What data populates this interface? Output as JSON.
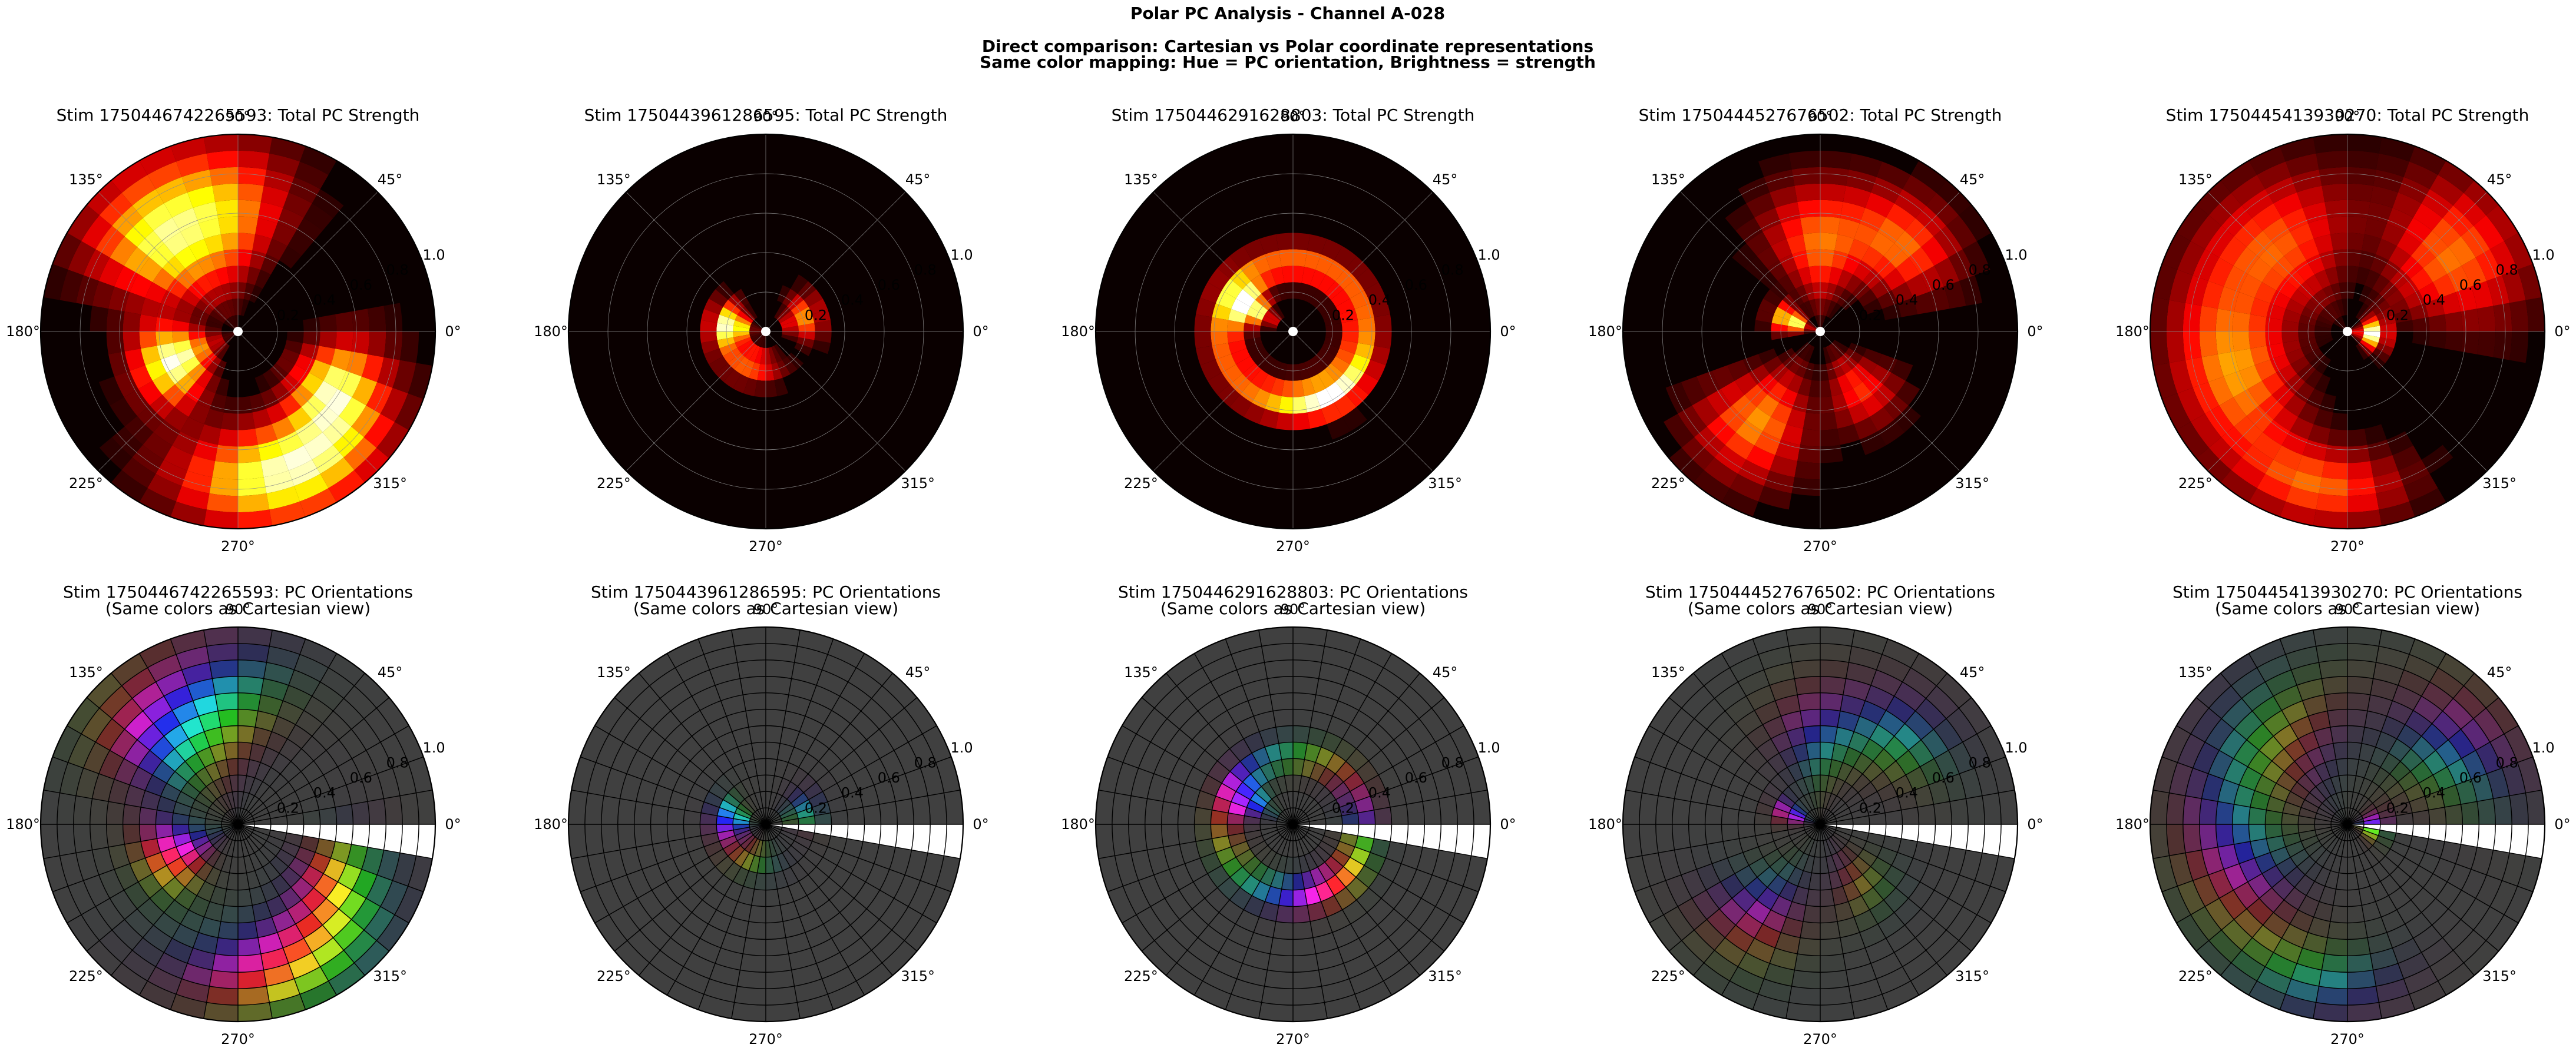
{
  "figure": {
    "title": "Polar PC Analysis - Channel A-028",
    "subtitle_1": "Direct comparison: Cartesian vs Polar coordinate representations",
    "subtitle_2": "Same color mapping: Hue = PC orientation, Brightness = strength"
  },
  "angle_ticks": [
    "0°",
    "45°",
    "90°",
    "135°",
    "180°",
    "225°",
    "270°",
    "315°"
  ],
  "radial_ticks": [
    "0.2",
    "0.4",
    "0.6",
    "0.8",
    "1.0"
  ],
  "stimuli": [
    {
      "id": "1750446742265593",
      "strength_title": "Stim 1750446742265593: Total PC Strength",
      "orient_title_1": "Stim 1750446742265593: PC Orientations",
      "orient_title_2": "(Same colors as Cartesian view)"
    },
    {
      "id": "1750443961286595",
      "strength_title": "Stim 1750443961286595: Total PC Strength",
      "orient_title_1": "Stim 1750443961286595: PC Orientations",
      "orient_title_2": "(Same colors as Cartesian view)"
    },
    {
      "id": "1750446291628803",
      "strength_title": "Stim 1750446291628803: Total PC Strength",
      "orient_title_1": "Stim 1750446291628803: PC Orientations",
      "orient_title_2": "(Same colors as Cartesian view)"
    },
    {
      "id": "1750444527676502",
      "strength_title": "Stim 1750444527676502: Total PC Strength",
      "orient_title_1": "Stim 1750444527676502: PC Orientations",
      "orient_title_2": "(Same colors as Cartesian view)"
    },
    {
      "id": "1750445413930270",
      "strength_title": "Stim 1750445413930270: Total PC Strength",
      "orient_title_1": "Stim 1750445413930270: PC Orientations",
      "orient_title_2": "(Same colors as Cartesian view)"
    }
  ],
  "chart_data": [
    {
      "type": "heatmap",
      "projection": "polar",
      "rlim": [
        0,
        1.0
      ],
      "colormap": "hot",
      "grid": true,
      "theta_bins": 36,
      "r_bins": 12,
      "strength_lobes": [
        {
          "stim": "1750446742265593",
          "lobes": [
            {
              "angle_deg": 100,
              "width_deg": 30,
              "r": 0.6,
              "r_width": 0.35,
              "amp": 0.7
            },
            {
              "angle_deg": 135,
              "width_deg": 25,
              "r": 0.6,
              "r_width": 0.35,
              "amp": 0.65
            },
            {
              "angle_deg": 205,
              "width_deg": 30,
              "r": 0.35,
              "r_width": 0.2,
              "amp": 1.0
            },
            {
              "angle_deg": 290,
              "width_deg": 40,
              "r": 0.75,
              "r_width": 0.25,
              "amp": 0.95
            },
            {
              "angle_deg": 330,
              "width_deg": 25,
              "r": 0.55,
              "r_width": 0.2,
              "amp": 0.75
            }
          ]
        },
        {
          "stim": "1750443961286595",
          "lobes": [
            {
              "angle_deg": 20,
              "width_deg": 30,
              "r": 0.2,
              "r_width": 0.1,
              "amp": 0.6
            },
            {
              "angle_deg": 170,
              "width_deg": 30,
              "r": 0.18,
              "r_width": 0.1,
              "amp": 0.95
            },
            {
              "angle_deg": 240,
              "width_deg": 50,
              "r": 0.18,
              "r_width": 0.1,
              "amp": 0.55
            }
          ]
        },
        {
          "stim": "1750446291628803",
          "lobes": [
            {
              "angle_deg": 0,
              "width_deg": 360,
              "r": 0.35,
              "r_width": 0.1,
              "amp": 0.55
            },
            {
              "angle_deg": 150,
              "width_deg": 20,
              "r": 0.25,
              "r_width": 0.12,
              "amp": 0.95
            },
            {
              "angle_deg": 300,
              "width_deg": 40,
              "r": 0.38,
              "r_width": 0.1,
              "amp": 0.5
            }
          ]
        },
        {
          "stim": "1750444527676502",
          "lobes": [
            {
              "angle_deg": 90,
              "width_deg": 30,
              "r": 0.45,
              "r_width": 0.3,
              "amp": 0.55
            },
            {
              "angle_deg": 45,
              "width_deg": 25,
              "r": 0.6,
              "r_width": 0.25,
              "amp": 0.5
            },
            {
              "angle_deg": 160,
              "width_deg": 20,
              "r": 0.15,
              "r_width": 0.1,
              "amp": 0.95
            },
            {
              "angle_deg": 235,
              "width_deg": 25,
              "r": 0.55,
              "r_width": 0.3,
              "amp": 0.6
            },
            {
              "angle_deg": 305,
              "width_deg": 25,
              "r": 0.35,
              "r_width": 0.2,
              "amp": 0.45
            }
          ]
        },
        {
          "stim": "1750445413930270",
          "lobes": [
            {
              "angle_deg": 35,
              "width_deg": 30,
              "r": 0.65,
              "r_width": 0.35,
              "amp": 0.55
            },
            {
              "angle_deg": 130,
              "width_deg": 40,
              "r": 0.55,
              "r_width": 0.35,
              "amp": 0.5
            },
            {
              "angle_deg": 200,
              "width_deg": 40,
              "r": 0.6,
              "r_width": 0.3,
              "amp": 0.6
            },
            {
              "angle_deg": 260,
              "width_deg": 30,
              "r": 0.8,
              "r_width": 0.2,
              "amp": 0.5
            },
            {
              "angle_deg": 355,
              "width_deg": 30,
              "r": 0.12,
              "r_width": 0.08,
              "amp": 1.0
            }
          ]
        }
      ]
    }
  ],
  "colors": {
    "background": "#ffffff",
    "orientation_base": "#404040",
    "polar_dark": "#0a0000",
    "grid": "#8a8a8a",
    "orientation_grid": "#000000",
    "center_dot": "#ffffff"
  }
}
